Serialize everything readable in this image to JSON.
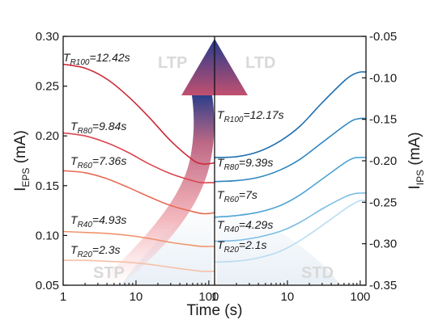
{
  "chart_data": {
    "type": "line",
    "xlabel": "Time (s)",
    "x_scale": "log",
    "xlim": [
      1,
      120
    ],
    "x_ticks": [
      "1",
      "10",
      "100"
    ],
    "left_panel": {
      "ylabel": "I",
      "ylabel_sub": "EPS",
      "ylabel_unit": " (mA)",
      "ylim": [
        0.05,
        0.3
      ],
      "y_ticks": [
        "0.05",
        "0.10",
        "0.15",
        "0.20",
        "0.25",
        "0.30"
      ],
      "region_labels": {
        "top": "LTP",
        "bottom": "STP"
      },
      "series": [
        {
          "T": "T",
          "sub": "R100",
          "label_rest": "=12.42s",
          "color": "#cc2a36",
          "x": [
            1,
            2,
            4,
            8,
            15,
            30,
            60,
            80,
            100,
            120
          ],
          "values": [
            0.272,
            0.268,
            0.257,
            0.239,
            0.219,
            0.195,
            0.176,
            0.172,
            0.172,
            0.173
          ]
        },
        {
          "T": "T",
          "sub": "R80",
          "label_rest": "=9.84s",
          "color": "#d94550",
          "x": [
            1,
            2,
            4,
            8,
            15,
            30,
            60,
            80,
            100,
            120
          ],
          "values": [
            0.203,
            0.2,
            0.193,
            0.183,
            0.172,
            0.162,
            0.155,
            0.153,
            0.153,
            0.153
          ]
        },
        {
          "T": "T",
          "sub": "R60",
          "label_rest": "=7.36s",
          "color": "#e76b55",
          "x": [
            1,
            2,
            4,
            8,
            15,
            30,
            60,
            80,
            100,
            120
          ],
          "values": [
            0.165,
            0.163,
            0.157,
            0.148,
            0.139,
            0.13,
            0.124,
            0.122,
            0.122,
            0.123
          ]
        },
        {
          "T": "T",
          "sub": "R40",
          "label_rest": "=4.93s",
          "color": "#f0946e",
          "x": [
            1,
            2,
            4,
            8,
            15,
            30,
            60,
            80,
            100,
            120
          ],
          "values": [
            0.104,
            0.103,
            0.102,
            0.1,
            0.097,
            0.093,
            0.09,
            0.089,
            0.089,
            0.089
          ]
        },
        {
          "T": "T",
          "sub": "R20",
          "label_rest": "=2.3s",
          "color": "#f7bfa6",
          "x": [
            1,
            2,
            4,
            8,
            15,
            30,
            60,
            80,
            100,
            120
          ],
          "values": [
            0.075,
            0.075,
            0.074,
            0.073,
            0.071,
            0.068,
            0.065,
            0.064,
            0.064,
            0.064
          ]
        }
      ]
    },
    "right_panel": {
      "ylabel": "I",
      "ylabel_sub": "IPS",
      "ylabel_unit": " (mA)",
      "ylim": [
        -0.35,
        -0.05
      ],
      "y_ticks": [
        "-0.35",
        "-0.30",
        "-0.25",
        "-0.20",
        "-0.15",
        "-0.10",
        "-0.05"
      ],
      "region_labels": {
        "top": "LTD",
        "bottom": "STD"
      },
      "series": [
        {
          "T": "T",
          "sub": "R100",
          "label_rest": "=12.17s",
          "color": "#1f6fb0",
          "x": [
            1,
            2,
            4,
            8,
            15,
            30,
            60,
            80,
            100,
            120
          ],
          "values": [
            -0.196,
            -0.195,
            -0.189,
            -0.176,
            -0.158,
            -0.13,
            -0.104,
            -0.096,
            -0.093,
            -0.093
          ]
        },
        {
          "T": "T",
          "sub": "R80",
          "label_rest": "=9.39s",
          "color": "#2e86c1",
          "x": [
            1,
            2,
            4,
            8,
            15,
            30,
            60,
            80,
            100,
            120
          ],
          "values": [
            -0.225,
            -0.224,
            -0.22,
            -0.211,
            -0.198,
            -0.178,
            -0.158,
            -0.151,
            -0.149,
            -0.149
          ]
        },
        {
          "T": "T",
          "sub": "R60",
          "label_rest": "=7s",
          "color": "#4fa3d4",
          "x": [
            1,
            2,
            4,
            8,
            15,
            30,
            60,
            80,
            100,
            120
          ],
          "values": [
            -0.268,
            -0.266,
            -0.262,
            -0.254,
            -0.241,
            -0.222,
            -0.203,
            -0.197,
            -0.196,
            -0.196
          ]
        },
        {
          "T": "T",
          "sub": "R40",
          "label_rest": "=4.29s",
          "color": "#7dbde3",
          "x": [
            1,
            2,
            4,
            8,
            15,
            30,
            60,
            80,
            100,
            120
          ],
          "values": [
            -0.297,
            -0.296,
            -0.292,
            -0.285,
            -0.274,
            -0.258,
            -0.244,
            -0.24,
            -0.239,
            -0.239
          ]
        },
        {
          "T": "T",
          "sub": "R20",
          "label_rest": "=2.1s",
          "color": "#b9dcf1",
          "x": [
            1,
            2,
            4,
            8,
            15,
            30,
            60,
            80,
            100,
            120
          ],
          "values": [
            -0.322,
            -0.321,
            -0.317,
            -0.309,
            -0.296,
            -0.278,
            -0.259,
            -0.252,
            -0.248,
            -0.248
          ]
        }
      ]
    }
  }
}
